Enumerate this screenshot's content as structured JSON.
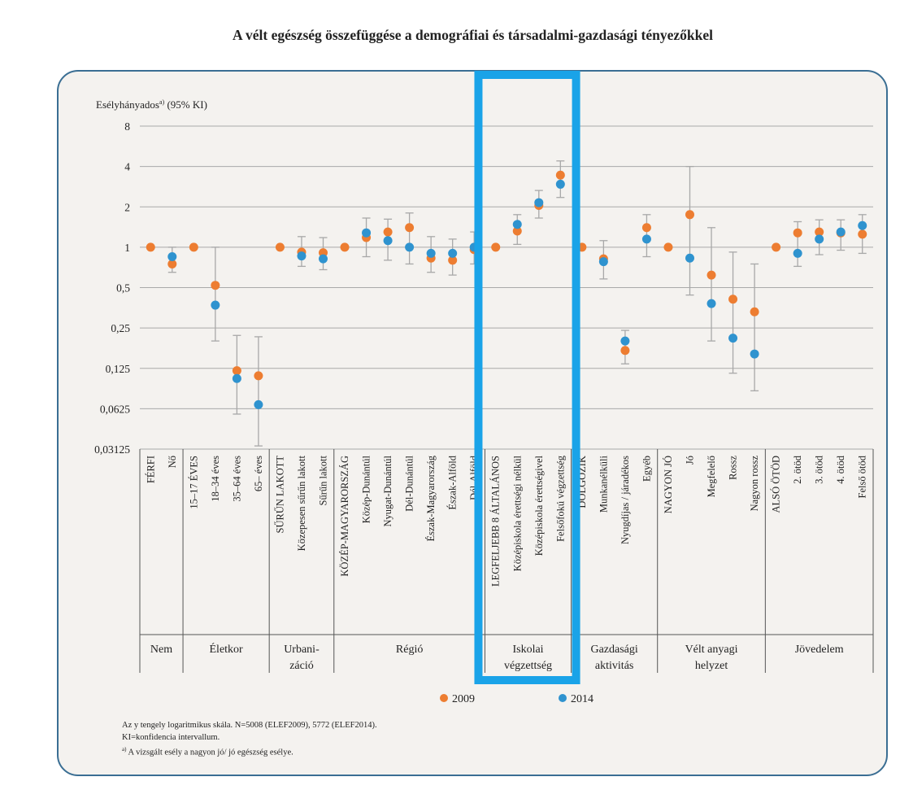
{
  "title": "A vélt egészség összefüggése a demográfiai és társadalmi-gazdasági tényezőkkel",
  "chart_data": {
    "type": "scatter",
    "y_scale": "log2",
    "ylabel": "Esélyhányados",
    "ylabel_sup": "a)",
    "ylabel_suffix": " (95% KI)",
    "yticks": [
      "8",
      "4",
      "2",
      "1",
      "0,5",
      "0,25",
      "0,125",
      "0,0625",
      "0,03125"
    ],
    "ylim": [
      0.03125,
      8
    ],
    "grid": true,
    "legend_position": "bottom",
    "colors": {
      "2009": "#ed7d31",
      "2014": "#2f93cf",
      "errorbar": "#a8a8a8",
      "highlight": "#1aa3e8"
    },
    "series": [
      {
        "name": "2009",
        "color": "#ed7d31"
      },
      {
        "name": "2014",
        "color": "#2f93cf"
      }
    ],
    "groups": [
      {
        "label": [
          "Nem"
        ],
        "categories": [
          "FÉRFI",
          "Nő"
        ]
      },
      {
        "label": [
          "Életkor"
        ],
        "categories": [
          "15–17 ÉVES",
          "18–34 éves",
          "35–64 éves",
          "65– éves"
        ]
      },
      {
        "label": [
          "Urbani-",
          "záció"
        ],
        "categories": [
          "SŰRŰN LAKOTT",
          "Közepesen sűrűn lakott",
          "Sűrűn lakott"
        ]
      },
      {
        "label": [
          "Régió"
        ],
        "categories": [
          "KÖZÉP-MAGYARORSZÁG",
          "Közép-Dunántúl",
          "Nyugat-Dunántúl",
          "Dél-Dunántúl",
          "Észak-Magyarország",
          "Észak-Alföld",
          "Dél-Alföld"
        ]
      },
      {
        "label": [
          "Iskolai",
          "végzettség"
        ],
        "categories": [
          "LEGFELJEBB 8 ÁLTALÁNOS",
          "Középiskola érettségi nélkül",
          "Középiskola érettségivel",
          "Felsőfokú végzettség"
        ]
      },
      {
        "label": [
          "Gazdasági",
          "aktivitás"
        ],
        "categories": [
          "DOLGOZIK",
          "Munkanélküli",
          "Nyugdíjas / járadékos",
          "Egyéb"
        ]
      },
      {
        "label": [
          "Vélt anyagi",
          "helyzet"
        ],
        "categories": [
          "NAGYON JÓ",
          "Jó",
          "Megfelelő",
          "Rossz",
          "Nagyon rossz"
        ]
      },
      {
        "label": [
          "Jövedelem"
        ],
        "categories": [
          "ALSÓ ÖTÖD",
          "2. ötöd",
          "3. ötöd",
          "4. ötöd",
          "Felső ötöd"
        ]
      }
    ],
    "points": [
      {
        "v2009": 1,
        "v2014": null
      },
      {
        "v2009": 0.75,
        "v2014": 0.85,
        "ci": [
          0.65,
          1.0
        ]
      },
      {
        "v2009": 1,
        "v2014": null
      },
      {
        "v2009": 0.52,
        "v2014": 0.37,
        "ci": [
          0.2,
          1.0
        ]
      },
      {
        "v2009": 0.12,
        "v2014": 0.105,
        "ci": [
          0.057,
          0.22
        ]
      },
      {
        "v2009": 0.11,
        "v2014": 0.067,
        "ci": [
          0.033,
          0.215
        ]
      },
      {
        "v2009": 1,
        "v2014": null
      },
      {
        "v2009": 0.92,
        "v2014": 0.86,
        "ci": [
          0.72,
          1.2
        ]
      },
      {
        "v2009": 0.91,
        "v2014": 0.82,
        "ci": [
          0.68,
          1.18
        ]
      },
      {
        "v2009": 1,
        "v2014": null
      },
      {
        "v2009": 1.18,
        "v2014": 1.28,
        "ci": [
          0.85,
          1.65
        ]
      },
      {
        "v2009": 1.3,
        "v2014": 1.12,
        "ci": [
          0.8,
          1.62
        ]
      },
      {
        "v2009": 1.4,
        "v2014": 1.0,
        "ci": [
          0.75,
          1.8
        ]
      },
      {
        "v2009": 0.83,
        "v2014": 0.9,
        "ci": [
          0.65,
          1.2
        ]
      },
      {
        "v2009": 0.8,
        "v2014": 0.9,
        "ci": [
          0.62,
          1.15
        ]
      },
      {
        "v2009": 0.96,
        "v2014": 1.0,
        "ci": [
          0.75,
          1.3
        ]
      },
      {
        "v2009": 1,
        "v2014": null
      },
      {
        "v2009": 1.32,
        "v2014": 1.48,
        "ci": [
          1.05,
          1.75
        ]
      },
      {
        "v2009": 2.05,
        "v2014": 2.15,
        "ci": [
          1.65,
          2.65
        ]
      },
      {
        "v2009": 3.45,
        "v2014": 2.95,
        "ci": [
          2.35,
          4.4
        ]
      },
      {
        "v2009": 1,
        "v2014": null
      },
      {
        "v2009": 0.82,
        "v2014": 0.78,
        "ci": [
          0.58,
          1.12
        ]
      },
      {
        "v2009": 0.17,
        "v2014": 0.2,
        "ci": [
          0.135,
          0.24
        ]
      },
      {
        "v2009": 1.4,
        "v2014": 1.15,
        "ci": [
          0.85,
          1.75
        ]
      },
      {
        "v2009": 1,
        "v2014": null
      },
      {
        "v2009": 1.75,
        "v2014": 0.83,
        "ci": [
          0.44,
          4.0
        ]
      },
      {
        "v2009": 0.62,
        "v2014": 0.38,
        "ci": [
          0.2,
          1.4
        ]
      },
      {
        "v2009": 0.41,
        "v2014": 0.21,
        "ci": [
          0.115,
          0.92
        ]
      },
      {
        "v2009": 0.33,
        "v2014": 0.16,
        "ci": [
          0.085,
          0.75
        ]
      },
      {
        "v2009": 1,
        "v2014": null
      },
      {
        "v2009": 1.28,
        "v2014": 0.9,
        "ci": [
          0.72,
          1.55
        ]
      },
      {
        "v2009": 1.3,
        "v2014": 1.15,
        "ci": [
          0.88,
          1.6
        ]
      },
      {
        "v2009": 1.28,
        "v2014": 1.3,
        "ci": [
          0.95,
          1.6
        ]
      },
      {
        "v2009": 1.25,
        "v2014": 1.45,
        "ci": [
          0.9,
          1.75
        ]
      }
    ],
    "highlight_group": "Iskolai"
  },
  "footnotes": [
    "Az y tengely logaritmikus skála. N=5008 (ELEF2009), 5772 (ELEF2014).",
    "KI=konfidencia intervallum.",
    "A vizsgált esély a nagyon jó/ jó egészség esélye."
  ],
  "footnote_marker": "a)"
}
